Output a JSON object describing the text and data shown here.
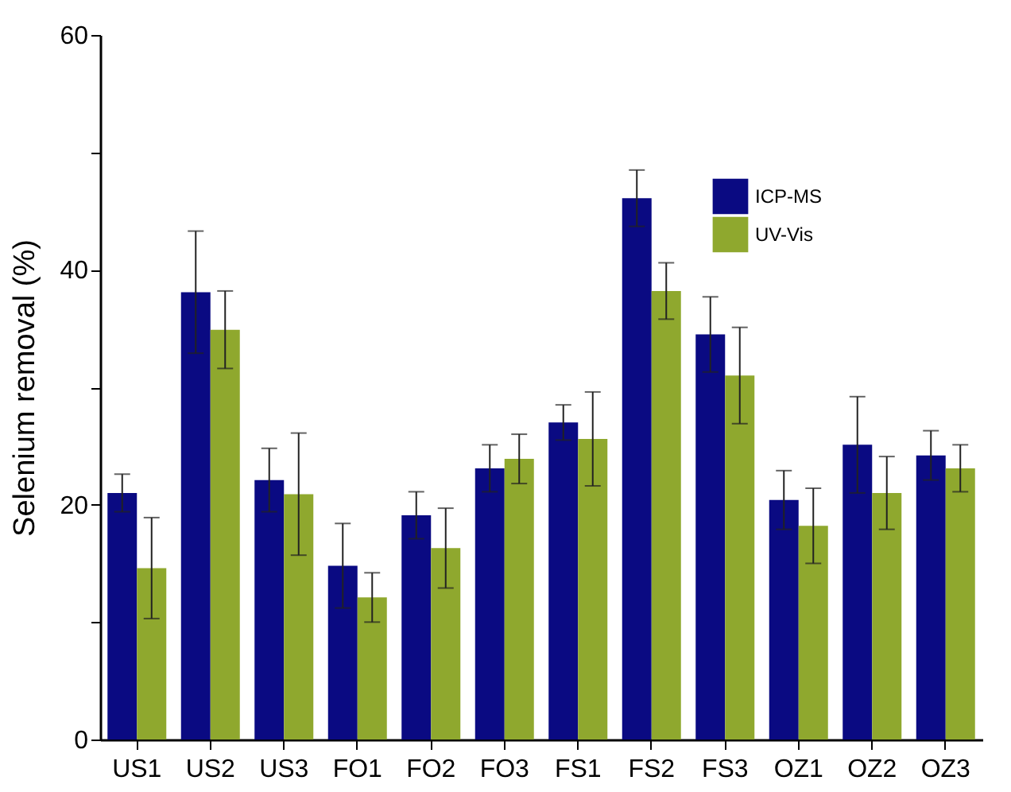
{
  "chart_data": {
    "type": "bar",
    "ylabel": "Selenium removal (%)",
    "categories": [
      "US1",
      "US2",
      "US3",
      "FO1",
      "FO2",
      "FO3",
      "FS1",
      "FS2",
      "FS3",
      "OZ1",
      "OZ2",
      "OZ3"
    ],
    "series": [
      {
        "name": "ICP-MS",
        "color": "#0a0a82",
        "values": [
          21.0,
          38.1,
          22.1,
          14.8,
          19.1,
          23.1,
          27.0,
          46.1,
          34.5,
          20.4,
          25.1,
          24.2
        ],
        "errors": [
          1.6,
          5.2,
          2.7,
          3.6,
          2.0,
          2.0,
          1.5,
          2.4,
          3.2,
          2.5,
          4.1,
          2.1
        ]
      },
      {
        "name": "UV-Vis",
        "color": "#8fa82e",
        "values": [
          14.6,
          34.9,
          20.9,
          12.1,
          16.3,
          23.9,
          25.6,
          38.2,
          31.0,
          18.2,
          21.0,
          23.1
        ],
        "errors": [
          4.3,
          3.3,
          5.2,
          2.1,
          3.4,
          2.1,
          4.0,
          2.4,
          4.1,
          3.2,
          3.1,
          2.0
        ]
      }
    ],
    "ylim": [
      0,
      60
    ],
    "yticks": [
      0,
      {
        "value": 10,
        "label": null
      },
      20,
      {
        "value": 30,
        "label": null
      },
      40,
      {
        "value": 50,
        "label": null
      },
      60
    ],
    "grid": false,
    "legend": "top right"
  }
}
